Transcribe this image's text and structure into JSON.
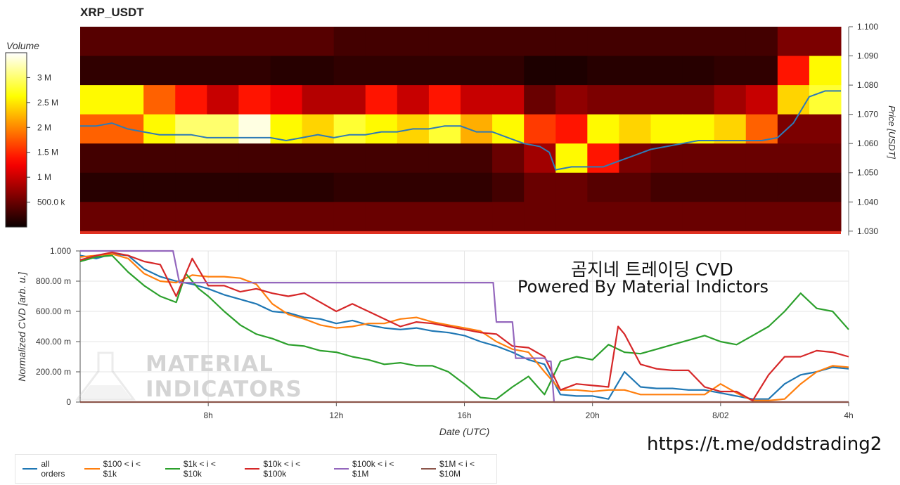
{
  "title": "XRP_USDT",
  "colorbar": {
    "label": "Volume",
    "ticks": [
      "3 M",
      "2.5 M",
      "2 M",
      "1.5 M",
      "1 M",
      "500.0 k"
    ],
    "tick_values": [
      3000000,
      2500000,
      2000000,
      1500000,
      1000000,
      500000
    ],
    "range": [
      0,
      3500000
    ]
  },
  "overlay": {
    "line1": "곰지네 트레이딩 CVD",
    "line2": "Powered By Material Indictors",
    "url": "https://t.me/oddstrading2"
  },
  "watermark": {
    "line1": "MATERIAL",
    "line2": "INDICATORS"
  },
  "chart_data": [
    {
      "type": "heatmap",
      "title": "XRP_USDT",
      "ylabel": "Price [USDT]",
      "y_ticks": [
        "1.100",
        "1.090",
        "1.080",
        "1.070",
        "1.060",
        "1.050",
        "1.040",
        "1.030"
      ],
      "ylim": [
        1.029,
        1.1
      ],
      "bins": [
        1.095,
        1.085,
        1.075,
        1.065,
        1.055,
        1.045,
        1.035
      ],
      "x_hours": [
        5.5,
        6.5,
        7.5,
        8.5,
        9.5,
        10.5,
        11.5,
        12.5,
        13.5,
        14.5,
        15.5,
        16.5,
        17.5,
        18.5,
        19.5,
        20.5,
        21.5,
        22.5,
        23.5,
        24.5,
        25.5,
        26.5,
        27.5
      ],
      "volumes": [
        [
          0.4,
          0.4,
          0.4,
          0.4,
          0.4,
          0.4,
          0.4,
          0.3,
          0.3,
          0.3,
          0.3,
          0.3,
          0.3,
          0.3,
          0.3,
          0.3,
          0.3,
          0.3,
          0.3,
          0.3,
          0.3,
          0.6,
          0.6
        ],
        [
          0.2,
          0.2,
          0.2,
          0.2,
          0.2,
          0.15,
          0.15,
          0.2,
          0.2,
          0.2,
          0.2,
          0.2,
          0.2,
          0.1,
          0.1,
          0.15,
          0.15,
          0.15,
          0.15,
          0.2,
          0.2,
          1.4,
          2.6
        ],
        [
          2.6,
          1.8,
          1.4,
          1.0,
          1.4,
          1.2,
          0.9,
          0.9,
          1.4,
          1.0,
          1.4,
          1.0,
          1.0,
          0.5,
          0.7,
          0.6,
          0.6,
          0.6,
          0.6,
          0.8,
          1.0,
          2.4,
          2.8
        ],
        [
          1.8,
          2.6,
          3.0,
          3.0,
          3.4,
          2.6,
          2.4,
          2.8,
          2.6,
          2.4,
          2.8,
          2.2,
          2.6,
          1.6,
          1.4,
          2.6,
          2.4,
          2.6,
          2.6,
          2.4,
          1.8,
          0.6,
          0.6
        ],
        [
          0.3,
          0.3,
          0.3,
          0.3,
          0.3,
          0.3,
          0.3,
          0.3,
          0.3,
          0.3,
          0.3,
          0.3,
          0.5,
          0.8,
          2.6,
          1.4,
          0.6,
          0.5,
          0.5,
          0.5,
          0.5,
          0.5,
          0.5
        ],
        [
          0.15,
          0.15,
          0.15,
          0.15,
          0.15,
          0.15,
          0.15,
          0.2,
          0.2,
          0.2,
          0.2,
          0.2,
          0.3,
          0.5,
          0.5,
          0.4,
          0.4,
          0.3,
          0.3,
          0.3,
          0.3,
          0.3,
          0.3
        ],
        [
          0.5,
          0.5,
          0.5,
          0.5,
          0.5,
          0.5,
          0.5,
          0.5,
          0.5,
          0.5,
          0.5,
          0.5,
          0.5,
          0.5,
          0.5,
          0.5,
          0.5,
          0.5,
          0.5,
          0.5,
          0.5,
          0.5,
          0.5
        ]
      ],
      "price_line": {
        "x": [
          4,
          4.5,
          5,
          5.5,
          6,
          6.5,
          7,
          7.5,
          8,
          8.5,
          9,
          9.5,
          10,
          10.5,
          11,
          11.5,
          12,
          12.5,
          13,
          13.5,
          14,
          14.5,
          15,
          15.5,
          16,
          16.5,
          17,
          17.5,
          18,
          18.5,
          18.8,
          19,
          19.5,
          20,
          20.5,
          21,
          21.5,
          22,
          22.5,
          23,
          23.5,
          24,
          24.5,
          25,
          25.5,
          26,
          26.5,
          27,
          27.5,
          28
        ],
        "y": [
          1.066,
          1.066,
          1.067,
          1.065,
          1.064,
          1.063,
          1.063,
          1.063,
          1.062,
          1.062,
          1.062,
          1.062,
          1.062,
          1.061,
          1.062,
          1.063,
          1.062,
          1.063,
          1.063,
          1.064,
          1.064,
          1.065,
          1.065,
          1.066,
          1.066,
          1.064,
          1.064,
          1.062,
          1.06,
          1.059,
          1.057,
          1.051,
          1.052,
          1.052,
          1.052,
          1.054,
          1.056,
          1.058,
          1.059,
          1.06,
          1.061,
          1.061,
          1.061,
          1.061,
          1.061,
          1.062,
          1.067,
          1.076,
          1.078,
          1.078
        ]
      },
      "color": "#2e7ab6"
    },
    {
      "type": "line",
      "xlabel": "Date (UTC)",
      "ylabel": "Normalized CVD [arb. u.]",
      "x_ticks": [
        "8h",
        "12h",
        "16h",
        "20h",
        "8/02",
        "4h"
      ],
      "x_tick_hours": [
        8,
        12,
        16,
        20,
        24,
        28
      ],
      "xlim": [
        4,
        28
      ],
      "y_ticks": [
        "0",
        "200.00 m",
        "400.00 m",
        "600.00 m",
        "800.00 m",
        "1.000"
      ],
      "y_tick_values": [
        0,
        0.2,
        0.4,
        0.6,
        0.8,
        1.0
      ],
      "ylim": [
        0,
        1.0
      ],
      "series": [
        {
          "name": "all orders",
          "color": "#1f77b4",
          "x": [
            4,
            4.5,
            5,
            5.5,
            6,
            6.5,
            7,
            7.5,
            8,
            8.5,
            9,
            9.5,
            10,
            10.5,
            11,
            11.5,
            12,
            12.5,
            13,
            13.5,
            14,
            14.5,
            15,
            15.5,
            16,
            16.5,
            17,
            17.5,
            18,
            18.5,
            19,
            19.5,
            20,
            20.5,
            21,
            21.5,
            22,
            22.5,
            23,
            23.5,
            24,
            24.5,
            25,
            25.5,
            26,
            26.5,
            27,
            27.5,
            28
          ],
          "y": [
            0.97,
            0.95,
            0.98,
            0.97,
            0.88,
            0.83,
            0.8,
            0.78,
            0.75,
            0.71,
            0.68,
            0.65,
            0.6,
            0.59,
            0.56,
            0.55,
            0.52,
            0.54,
            0.51,
            0.49,
            0.48,
            0.49,
            0.47,
            0.46,
            0.44,
            0.4,
            0.37,
            0.33,
            0.28,
            0.25,
            0.05,
            0.04,
            0.04,
            0.02,
            0.2,
            0.1,
            0.09,
            0.09,
            0.08,
            0.08,
            0.06,
            0.04,
            0.02,
            0.02,
            0.12,
            0.18,
            0.2,
            0.23,
            0.22
          ]
        },
        {
          "name": "$100 < i < $1k",
          "color": "#ff7f0e",
          "x": [
            4,
            4.5,
            5,
            5.5,
            6,
            6.5,
            7,
            7.5,
            8,
            8.5,
            9,
            9.5,
            10,
            10.5,
            11,
            11.5,
            12,
            12.5,
            13,
            13.5,
            14,
            14.5,
            15,
            15.5,
            16,
            16.5,
            17,
            17.5,
            18,
            18.5,
            19,
            19.5,
            20,
            20.5,
            21,
            21.5,
            22,
            22.5,
            23,
            23.5,
            24,
            24.5,
            25,
            25.5,
            26,
            26.5,
            27,
            27.5,
            28
          ],
          "y": [
            0.96,
            0.97,
            0.98,
            0.95,
            0.85,
            0.8,
            0.79,
            0.84,
            0.83,
            0.83,
            0.82,
            0.78,
            0.65,
            0.58,
            0.55,
            0.51,
            0.49,
            0.5,
            0.52,
            0.52,
            0.55,
            0.56,
            0.53,
            0.51,
            0.49,
            0.47,
            0.4,
            0.35,
            0.33,
            0.2,
            0.08,
            0.08,
            0.07,
            0.08,
            0.08,
            0.05,
            0.05,
            0.05,
            0.05,
            0.05,
            0.12,
            0.06,
            0.01,
            0.01,
            0.02,
            0.12,
            0.2,
            0.24,
            0.23
          ]
        },
        {
          "name": "$1k < i < $10k",
          "color": "#2ca02c",
          "x": [
            4,
            4.5,
            5,
            5.5,
            6,
            6.5,
            7,
            7.3,
            7.7,
            8,
            8.5,
            9,
            9.5,
            10,
            10.5,
            11,
            11.5,
            12,
            12.5,
            13,
            13.5,
            14,
            14.5,
            15,
            15.5,
            16,
            16.5,
            17,
            17.5,
            18,
            18.5,
            19,
            19.5,
            20,
            20.5,
            21,
            21.5,
            22,
            22.5,
            23,
            23.5,
            24,
            24.5,
            25,
            25.5,
            26,
            26.5,
            27,
            27.5,
            28
          ],
          "y": [
            0.93,
            0.96,
            0.97,
            0.86,
            0.77,
            0.7,
            0.66,
            0.85,
            0.75,
            0.7,
            0.6,
            0.51,
            0.45,
            0.42,
            0.38,
            0.37,
            0.34,
            0.33,
            0.3,
            0.28,
            0.25,
            0.26,
            0.24,
            0.24,
            0.2,
            0.12,
            0.03,
            0.02,
            0.1,
            0.17,
            0.05,
            0.27,
            0.3,
            0.28,
            0.38,
            0.33,
            0.32,
            0.35,
            0.38,
            0.41,
            0.44,
            0.4,
            0.38,
            0.44,
            0.5,
            0.6,
            0.72,
            0.62,
            0.6,
            0.48
          ]
        },
        {
          "name": "$10k < i < $100k",
          "color": "#d62728",
          "x": [
            4,
            4.5,
            5,
            5.5,
            6,
            6.5,
            7,
            7.5,
            8,
            8.5,
            9,
            9.5,
            10,
            10.5,
            11,
            11.5,
            12,
            12.5,
            13,
            13.5,
            14,
            14.5,
            15,
            15.5,
            16,
            16.5,
            17,
            17.5,
            18,
            18.5,
            19,
            19.5,
            20,
            20.5,
            20.8,
            21,
            21.5,
            22,
            22.5,
            23,
            23.5,
            24,
            24.5,
            25,
            25.5,
            26,
            26.5,
            27,
            27.5,
            28
          ],
          "y": [
            0.94,
            0.97,
            0.99,
            0.97,
            0.93,
            0.91,
            0.7,
            0.95,
            0.77,
            0.77,
            0.73,
            0.75,
            0.72,
            0.7,
            0.72,
            0.66,
            0.6,
            0.65,
            0.6,
            0.55,
            0.5,
            0.53,
            0.52,
            0.5,
            0.48,
            0.46,
            0.45,
            0.37,
            0.36,
            0.3,
            0.08,
            0.12,
            0.11,
            0.1,
            0.5,
            0.45,
            0.25,
            0.22,
            0.21,
            0.21,
            0.1,
            0.07,
            0.07,
            0.01,
            0.18,
            0.3,
            0.3,
            0.34,
            0.33,
            0.3
          ]
        },
        {
          "name": "$100k < i < $1M",
          "color": "#9467bd",
          "x": [
            4,
            6.9,
            7.1,
            16.9,
            17.0,
            17.5,
            17.6,
            18.5,
            18.6,
            18.7,
            18.8,
            28
          ],
          "y": [
            1.0,
            1.0,
            0.79,
            0.79,
            0.53,
            0.53,
            0.29,
            0.29,
            0.27,
            0.27,
            0.0,
            0.0
          ]
        },
        {
          "name": "$1M < i < $10M",
          "color": "#8c564b",
          "x": [
            4,
            28
          ],
          "y": [
            0,
            0
          ]
        }
      ]
    }
  ]
}
